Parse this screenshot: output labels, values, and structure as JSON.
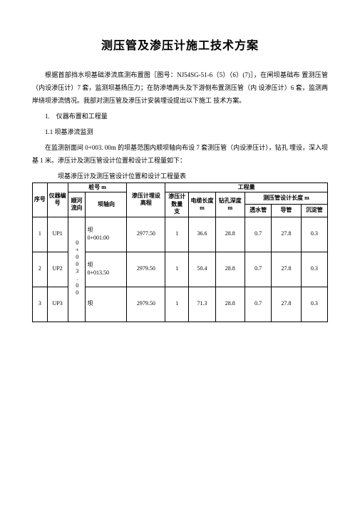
{
  "title": "测压管及渗压计施工技术方案",
  "para1": "根据首部挡水坝基础渗流底测布置图［图号：NJ54SG-51-6（5）（6）(7)］，在闸坝基础布 置测压管（内设渗压计）7 套，监测坝基扬压力；在防渗墙两头及下游侧布置测压管（内 设渗压计）6 套，监测两岸绕坝渗流情况。我部对测压管及渗压计安装埋设提出以下施工 技术方案。",
  "section1": "1.　仪器布置和工程量",
  "section1_1": "1.1 坝基渗流监测",
  "para2": "在监测剖面间 0+003. 00m 的坝基范围内顺坝轴向布设 7 套测压管（内设渗压计），钻孔 埋设，深入坝基 1 米。渗压计及测压管设计位置和设计工程量如下：",
  "table_caption": "坝基渗压计及测压管设计位置和设计工程量表",
  "headers": {
    "c1": "序号",
    "c2": "仪器编号",
    "c3_top": "桩号 m",
    "c3_a": "顺河流向",
    "c3_b": "坝轴向",
    "c4": "渗压计埋设\n高程",
    "c5_top": "工程量",
    "c5_a": "渗压计数量\n支",
    "c5_b": "电缆长度\nm",
    "c5_c": "钻孔深度 m",
    "c5_dtop": "测压管设计长度 m",
    "c5_d1": "透水管",
    "c5_d2": "导管",
    "c5_d3": "沉淀管"
  },
  "rows": [
    {
      "n": "1",
      "id": "UP1",
      "a": "坝\n0+001.00",
      "b": "2977.50",
      "c": "1",
      "d": "36.6",
      "e": "28.8",
      "f": "0.7",
      "g": "27.8",
      "h": "0.3"
    },
    {
      "n": "2",
      "id": "UP2",
      "a": "坝\n0+013.50",
      "b": "2979.50",
      "c": "1",
      "d": "50.4",
      "e": "28.8",
      "f": "0.7",
      "g": "27.8",
      "h": "0.3"
    },
    {
      "n": "3",
      "id": "UP3",
      "a": "坝",
      "b": "2979.50",
      "c": "1",
      "d": "71.3",
      "e": "28.8",
      "f": "0.7",
      "g": "27.8",
      "h": "0.3"
    }
  ],
  "merged_col_text": "0+003.00"
}
